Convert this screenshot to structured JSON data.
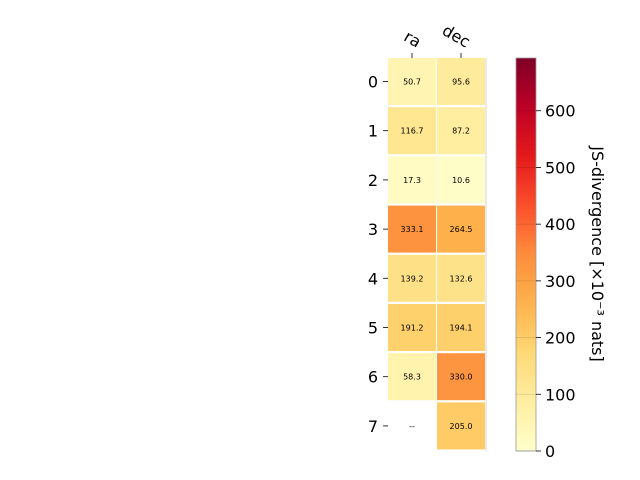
{
  "chart_data": {
    "type": "heatmap",
    "columns": [
      "ra",
      "dec"
    ],
    "rows": [
      "0",
      "1",
      "2",
      "3",
      "4",
      "5",
      "6",
      "7"
    ],
    "values": [
      [
        50.7,
        95.6
      ],
      [
        116.7,
        87.2
      ],
      [
        17.3,
        10.6
      ],
      [
        333.1,
        264.5
      ],
      [
        139.2,
        132.6
      ],
      [
        191.2,
        194.1
      ],
      [
        58.3,
        330.0
      ],
      [
        null,
        205.0
      ]
    ],
    "cell_labels": [
      [
        "50.7",
        "95.6"
      ],
      [
        "116.7",
        "87.2"
      ],
      [
        "17.3",
        "10.6"
      ],
      [
        "333.1",
        "264.5"
      ],
      [
        "139.2",
        "132.6"
      ],
      [
        "191.2",
        "194.1"
      ],
      [
        "58.3",
        "330.0"
      ],
      [
        "--",
        "205.0"
      ]
    ],
    "colorbar": {
      "label": "JS-divergence [×10⁻³ nats]",
      "range": [
        0,
        693
      ],
      "ticks": [
        0,
        100,
        200,
        300,
        400,
        500,
        600
      ],
      "tick_labels": [
        "0",
        "100",
        "200",
        "300",
        "400",
        "500",
        "600"
      ],
      "colormap": "YlOrRd"
    },
    "colors": {
      "light_text_threshold": 190,
      "dark_text": "#000000",
      "light_text": "#ffffff"
    }
  }
}
